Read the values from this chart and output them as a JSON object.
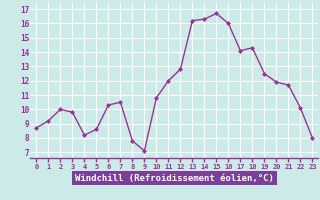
{
  "x": [
    0,
    1,
    2,
    3,
    4,
    5,
    6,
    7,
    8,
    9,
    10,
    11,
    12,
    13,
    14,
    15,
    16,
    17,
    18,
    19,
    20,
    21,
    22,
    23
  ],
  "y": [
    8.7,
    9.2,
    10.0,
    9.8,
    8.2,
    8.6,
    10.3,
    10.5,
    7.8,
    7.1,
    10.8,
    12.0,
    12.8,
    16.2,
    16.3,
    16.7,
    16.0,
    14.1,
    14.3,
    12.5,
    11.9,
    11.7,
    10.1,
    8.0
  ],
  "line_color": "#993399",
  "marker": "D",
  "marker_size": 2.0,
  "line_width": 1.0,
  "xlabel": "Windchill (Refroidissement éolien,°C)",
  "xlabel_fontsize": 6.5,
  "ytick_labels": [
    "7",
    "8",
    "9",
    "10",
    "11",
    "12",
    "13",
    "14",
    "15",
    "16",
    "17"
  ],
  "ylim": [
    6.6,
    17.5
  ],
  "xlim": [
    -0.5,
    23.5
  ],
  "xtick_labels": [
    "0",
    "1",
    "2",
    "3",
    "4",
    "5",
    "6",
    "7",
    "8",
    "9",
    "10",
    "11",
    "12",
    "13",
    "14",
    "15",
    "16",
    "17",
    "18",
    "19",
    "20",
    "21",
    "22",
    "23"
  ],
  "yticks": [
    7,
    8,
    9,
    10,
    11,
    12,
    13,
    14,
    15,
    16,
    17
  ],
  "bg_color": "#cceae7",
  "grid_color": "#ffffff",
  "tick_color": "#993399",
  "label_color": "#993399",
  "xlabel_bg": "#7b3f99",
  "xlabel_fg": "#ffffff",
  "xtick_bg": "#cceae7",
  "border_color": "#993399"
}
